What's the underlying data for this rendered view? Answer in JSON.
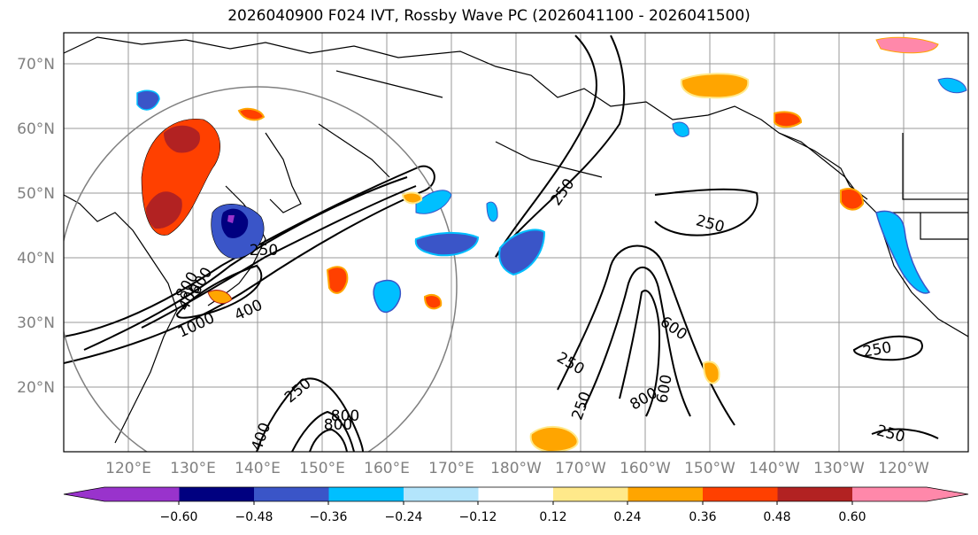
{
  "title": "2026040900 F024 IVT, Rossby Wave PC (2026041100 - 2026041500)",
  "map": {
    "lat_labels": [
      "70°N",
      "60°N",
      "50°N",
      "40°N",
      "30°N",
      "20°N"
    ],
    "lon_labels": [
      "120°E",
      "130°E",
      "140°E",
      "150°E",
      "160°E",
      "170°E",
      "180°W",
      "170°W",
      "160°W",
      "150°W",
      "140°W",
      "130°W",
      "120°W"
    ],
    "contour_labels": [
      "250",
      "250",
      "250",
      "250",
      "250",
      "250",
      "250",
      "250",
      "400",
      "400",
      "600",
      "800",
      "800",
      "800",
      "1000",
      "400",
      "600",
      "800",
      "600"
    ]
  },
  "colorbar": {
    "tick_labels": [
      "−0.60",
      "−0.48",
      "−0.36",
      "−0.24",
      "−0.12",
      "0.12",
      "0.24",
      "0.36",
      "0.48",
      "0.60"
    ],
    "colors": [
      "#9933cc",
      "#000080",
      "#3a55c8",
      "#00bfff",
      "#b3e5fc",
      "#ffffff",
      "#ffe98a",
      "#ffa500",
      "#ff4000",
      "#b22222",
      "#ff88aa"
    ]
  }
}
